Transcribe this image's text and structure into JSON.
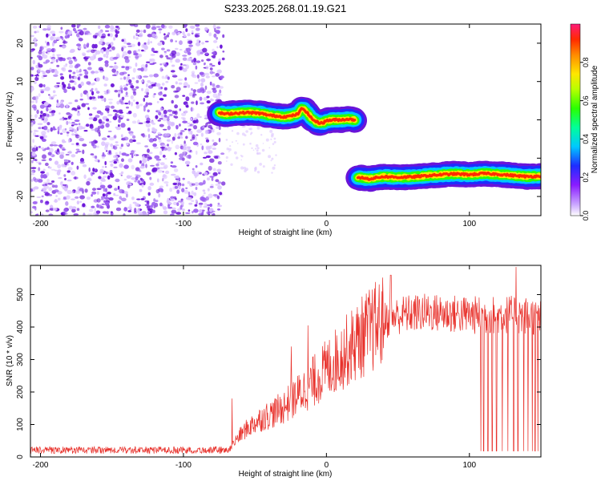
{
  "title": "S233.2025.268.01.19.G21",
  "colors": {
    "snr_line": "#e8302a",
    "frame": "#000000",
    "scatter_low": "#dcc4ff",
    "scatter_high": "#6a14d8"
  },
  "chart_data": [
    {
      "type": "heatmap",
      "name": "spectrogram",
      "title": "S233.2025.268.01.19.G21",
      "xlabel": "Height of straight line (km)",
      "ylabel": "Frequency (Hz)",
      "xlim": [
        -207,
        150
      ],
      "ylim": [
        -25,
        25
      ],
      "xticks": [
        -200,
        -100,
        0,
        100
      ],
      "yticks": [
        -20,
        -10,
        0,
        10,
        20
      ],
      "noise_region": {
        "x_range": [
          -207,
          -72
        ],
        "y_range": [
          -25,
          25
        ]
      },
      "signal_track": {
        "x": [
          -75,
          -70,
          -65,
          -60,
          -55,
          -50,
          -45,
          -40,
          -35,
          -30,
          -25,
          -20,
          -17,
          -15,
          -12,
          -10,
          -7,
          -5,
          -2,
          0,
          5,
          10,
          15,
          20
        ],
        "y": [
          1.8,
          1.5,
          1.7,
          1.8,
          1.9,
          1.8,
          1.6,
          1.2,
          1.0,
          0.8,
          1.0,
          1.5,
          3.0,
          2.5,
          1.2,
          0.2,
          -0.5,
          -0.8,
          -0.7,
          -0.2,
          0.0,
          0.0,
          0.2,
          0.0
        ]
      },
      "signal_track_2": {
        "x": [
          22,
          30,
          40,
          50,
          60,
          70,
          80,
          90,
          100,
          110,
          120,
          130,
          140,
          150
        ],
        "y": [
          -15.0,
          -15.4,
          -14.8,
          -15.0,
          -14.9,
          -14.6,
          -14.3,
          -14.1,
          -14.3,
          -14.0,
          -14.2,
          -14.5,
          -14.8,
          -14.7
        ]
      },
      "colorbar": {
        "label": "Normalized spectral amplitude",
        "range": [
          0,
          1
        ],
        "ticks": [
          "0.0",
          "0.2",
          "0.4",
          "0.6",
          "0.8"
        ],
        "tick_values": [
          0,
          0.2,
          0.4,
          0.6,
          0.8
        ]
      }
    },
    {
      "type": "line",
      "name": "snr",
      "xlabel": "Height of straight line (km)",
      "ylabel": "SNR (10 * v/v)",
      "xlim": [
        -207,
        150
      ],
      "ylim": [
        0,
        590
      ],
      "xticks": [
        -200,
        -100,
        0,
        100
      ],
      "yticks": [
        0,
        100,
        200,
        300,
        400,
        500
      ],
      "trend_points": [
        [
          -207,
          18
        ],
        [
          -100,
          20
        ],
        [
          -68,
          22
        ],
        [
          -62,
          60
        ],
        [
          -55,
          90
        ],
        [
          -45,
          120
        ],
        [
          -35,
          140
        ],
        [
          -28,
          160
        ],
        [
          -20,
          190
        ],
        [
          -12,
          220
        ],
        [
          -5,
          250
        ],
        [
          5,
          290
        ],
        [
          15,
          330
        ],
        [
          25,
          370
        ],
        [
          35,
          405
        ],
        [
          45,
          430
        ],
        [
          55,
          440
        ],
        [
          70,
          445
        ],
        [
          90,
          440
        ],
        [
          110,
          435
        ],
        [
          130,
          440
        ],
        [
          150,
          430
        ]
      ],
      "spikes": [
        {
          "x": -66,
          "y": 180
        },
        {
          "x": -60,
          "y": 210
        },
        {
          "x": -13,
          "y": 405
        },
        {
          "x": -25,
          "y": 340
        },
        {
          "x": 45,
          "y": 560
        },
        {
          "x": 133,
          "y": 585
        },
        {
          "x": 148,
          "y": 560
        }
      ],
      "dropouts_x": [
        108,
        110,
        113,
        116,
        119,
        123,
        127,
        131,
        134,
        138,
        141,
        144,
        146,
        148
      ]
    }
  ]
}
